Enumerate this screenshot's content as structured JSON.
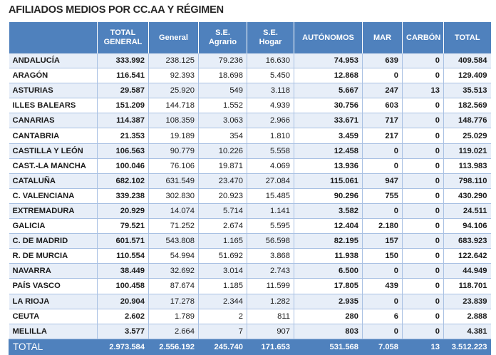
{
  "title": "AFILIADOS MEDIOS POR CC.AA Y RÉGIMEN",
  "headers": {
    "region": "",
    "total_general": [
      "TOTAL",
      "GENERAL"
    ],
    "general": [
      "General"
    ],
    "se_agrario": [
      "S.E.",
      "Agrario"
    ],
    "se_hogar": [
      "S.E.",
      "Hogar"
    ],
    "autonomos": [
      "AUTÓNOMOS"
    ],
    "mar": [
      "MAR"
    ],
    "carbon": [
      "CARBÓN"
    ],
    "total": [
      "TOTAL"
    ]
  },
  "rows": [
    [
      "ANDALUCÍA",
      "333.992",
      "238.125",
      "79.236",
      "16.630",
      "74.953",
      "639",
      "0",
      "409.584"
    ],
    [
      "ARAGÓN",
      "116.541",
      "92.393",
      "18.698",
      "5.450",
      "12.868",
      "0",
      "0",
      "129.409"
    ],
    [
      "ASTURIAS",
      "29.587",
      "25.920",
      "549",
      "3.118",
      "5.667",
      "247",
      "13",
      "35.513"
    ],
    [
      "ILLES BALEARS",
      "151.209",
      "144.718",
      "1.552",
      "4.939",
      "30.756",
      "603",
      "0",
      "182.569"
    ],
    [
      "CANARIAS",
      "114.387",
      "108.359",
      "3.063",
      "2.966",
      "33.671",
      "717",
      "0",
      "148.776"
    ],
    [
      "CANTABRIA",
      "21.353",
      "19.189",
      "354",
      "1.810",
      "3.459",
      "217",
      "0",
      "25.029"
    ],
    [
      "CASTILLA Y LEÓN",
      "106.563",
      "90.779",
      "10.226",
      "5.558",
      "12.458",
      "0",
      "0",
      "119.021"
    ],
    [
      "CAST.-LA MANCHA",
      "100.046",
      "76.106",
      "19.871",
      "4.069",
      "13.936",
      "0",
      "0",
      "113.983"
    ],
    [
      "CATALUÑA",
      "682.102",
      "631.549",
      "23.470",
      "27.084",
      "115.061",
      "947",
      "0",
      "798.110"
    ],
    [
      "C. VALENCIANA",
      "339.238",
      "302.830",
      "20.923",
      "15.485",
      "90.296",
      "755",
      "0",
      "430.290"
    ],
    [
      "EXTREMADURA",
      "20.929",
      "14.074",
      "5.714",
      "1.141",
      "3.582",
      "0",
      "0",
      "24.511"
    ],
    [
      "GALICIA",
      "79.521",
      "71.252",
      "2.674",
      "5.595",
      "12.404",
      "2.180",
      "0",
      "94.106"
    ],
    [
      "C. DE MADRID",
      "601.571",
      "543.808",
      "1.165",
      "56.598",
      "82.195",
      "157",
      "0",
      "683.923"
    ],
    [
      "R. DE MURCIA",
      "110.554",
      "54.994",
      "51.692",
      "3.868",
      "11.938",
      "150",
      "0",
      "122.642"
    ],
    [
      "NAVARRA",
      "38.449",
      "32.692",
      "3.014",
      "2.743",
      "6.500",
      "0",
      "0",
      "44.949"
    ],
    [
      "PAÍS VASCO",
      "100.458",
      "87.674",
      "1.185",
      "11.599",
      "17.805",
      "439",
      "0",
      "118.701"
    ],
    [
      "LA RIOJA",
      "20.904",
      "17.278",
      "2.344",
      "1.282",
      "2.935",
      "0",
      "0",
      "23.839"
    ],
    [
      "CEUTA",
      "2.602",
      "1.789",
      "2",
      "811",
      "280",
      "6",
      "0",
      "2.888"
    ],
    [
      "MELILLA",
      "3.577",
      "2.664",
      "7",
      "907",
      "803",
      "0",
      "0",
      "4.381"
    ]
  ],
  "totals": [
    "TOTAL",
    "2.973.584",
    "2.556.192",
    "245.740",
    "171.653",
    "531.568",
    "7.058",
    "13",
    "3.512.223"
  ]
}
